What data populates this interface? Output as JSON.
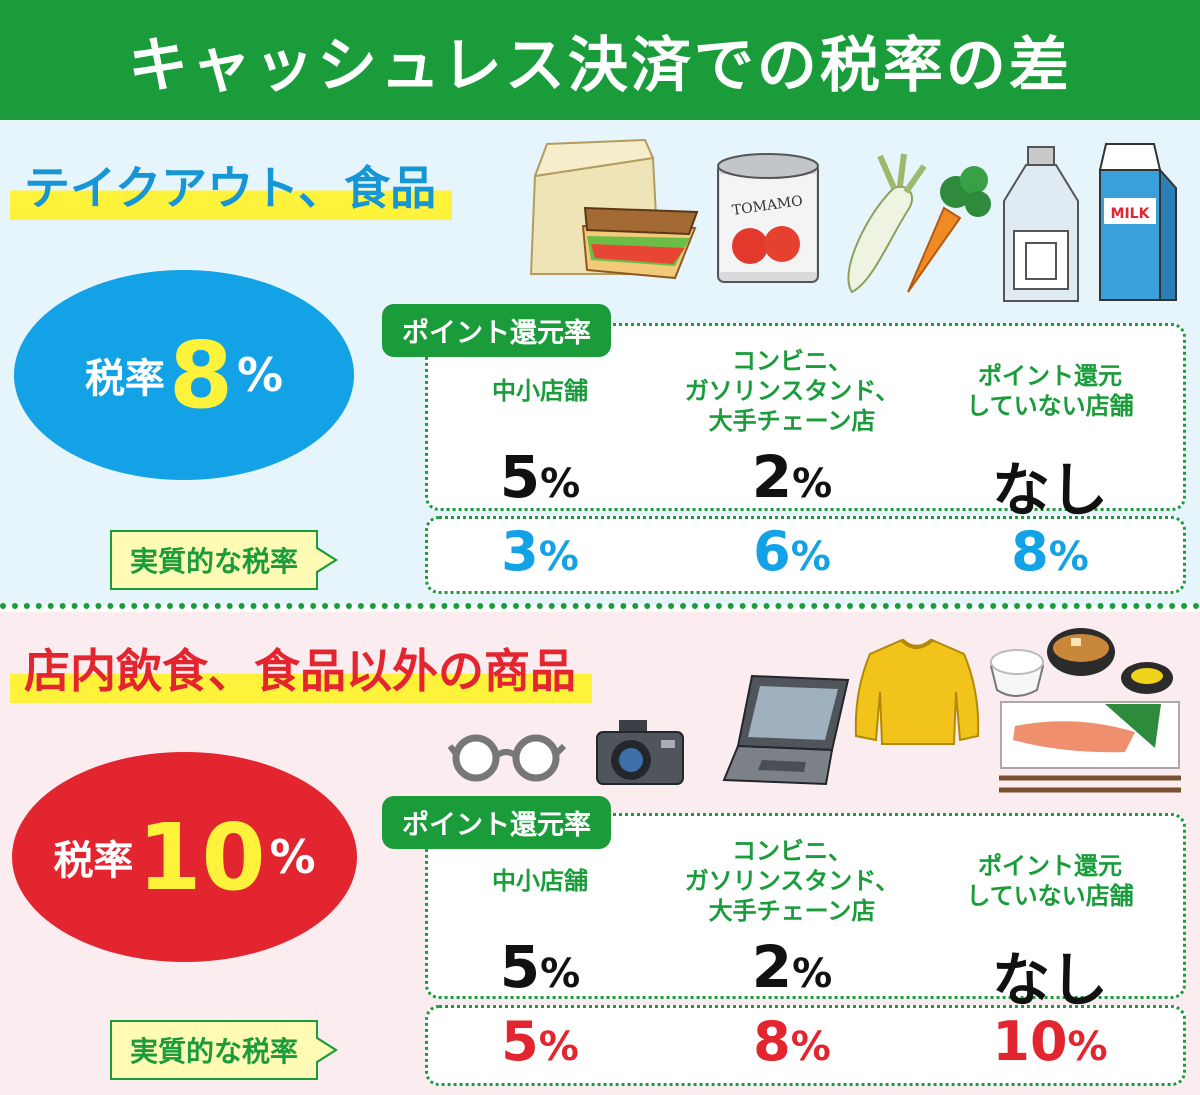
{
  "title": "キャッシュレス決済での税率の差",
  "sections": [
    {
      "category": "テイクアウト、食品",
      "tax_label": "税率",
      "tax_value": "8",
      "tax_unit": "%",
      "tag": "ポイント還元率",
      "columns": [
        {
          "header": "中小店舗",
          "value": "5",
          "unit": "%"
        },
        {
          "header": "コンビニ、\nガソリンスタンド、\n大手チェーン店",
          "value": "2",
          "unit": "%"
        },
        {
          "header": "ポイント還元\nしていない店舗",
          "value": "なし",
          "unit": ""
        }
      ],
      "effective_label": "実質的な税率",
      "effective": [
        {
          "value": "3",
          "unit": "%"
        },
        {
          "value": "6",
          "unit": "%"
        },
        {
          "value": "8",
          "unit": "%"
        }
      ],
      "illustrations": {
        "can_label": "TOMAMO",
        "milk_label": "MILK"
      }
    },
    {
      "category": "店内飲食、食品以外の商品",
      "tax_label": "税率",
      "tax_value": "10",
      "tax_unit": "%",
      "tag": "ポイント還元率",
      "columns": [
        {
          "header": "中小店舗",
          "value": "5",
          "unit": "%"
        },
        {
          "header": "コンビニ、\nガソリンスタンド、\n大手チェーン店",
          "value": "2",
          "unit": "%"
        },
        {
          "header": "ポイント還元\nしていない店舗",
          "value": "なし",
          "unit": ""
        }
      ],
      "effective_label": "実質的な税率",
      "effective": [
        {
          "value": "5",
          "unit": "%"
        },
        {
          "value": "8",
          "unit": "%"
        },
        {
          "value": "10",
          "unit": "%"
        }
      ]
    }
  ],
  "colors": {
    "green": "#1a9c3b",
    "blue": "#13a2e6",
    "red": "#e2252e",
    "yellow": "#fff23b"
  }
}
